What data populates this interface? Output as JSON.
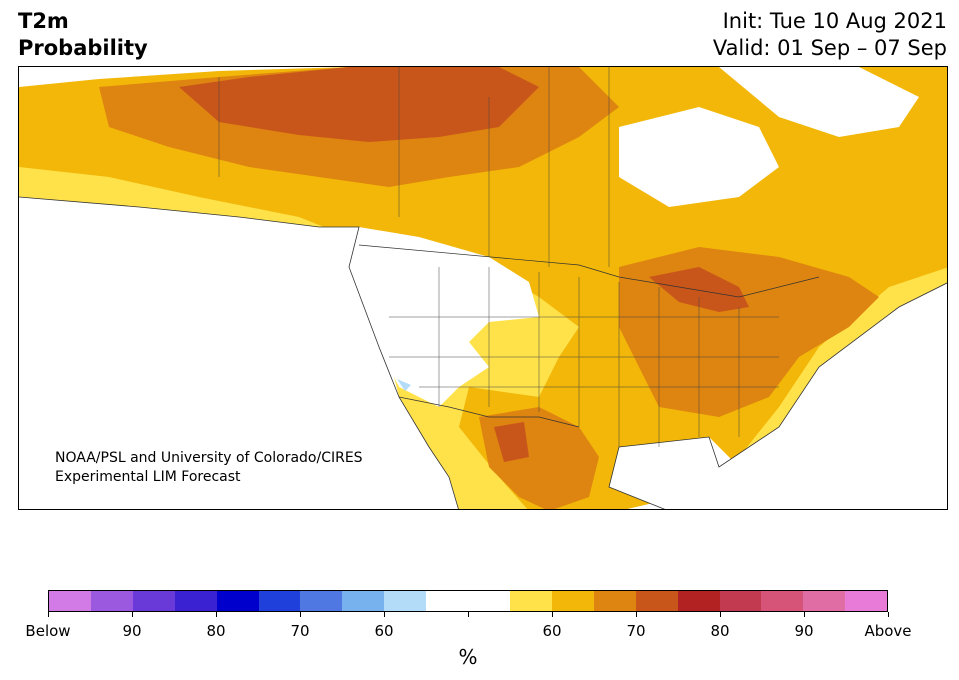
{
  "header": {
    "variable": "T2m",
    "product": "Probability",
    "init": "Init: Tue 10 Aug 2021",
    "valid": "Valid: 01 Sep – 07 Sep"
  },
  "map": {
    "region": "North America",
    "credit_line1": "NOAA/PSL and University of Colorado/CIRES",
    "credit_line2": "Experimental LIM Forecast"
  },
  "colorbar": {
    "unit": "%",
    "colors": [
      "#d27ae6",
      "#9b59e0",
      "#6a3ad8",
      "#3a21d2",
      "#0000cc",
      "#2040dc",
      "#4f78e2",
      "#78b2ee",
      "#b2dcf8",
      "#ffffff",
      "#ffffff",
      "#ffe24a",
      "#f2b708",
      "#de8410",
      "#c8561a",
      "#b22222",
      "#c23a50",
      "#d65478",
      "#e06ea4",
      "#e87ad8"
    ],
    "tick_labels": [
      "Below",
      "90",
      "80",
      "70",
      "60",
      "",
      "60",
      "70",
      "80",
      "90",
      "Above"
    ]
  },
  "legend_colors": {
    "white_near_normal": "#ffffff",
    "prob_above_55": "#ffe24a",
    "prob_above_60": "#f2b708",
    "prob_above_70": "#de8410",
    "prob_above_75": "#c8561a",
    "prob_below_60": "#b2dcf8",
    "land_border": "#333333"
  }
}
